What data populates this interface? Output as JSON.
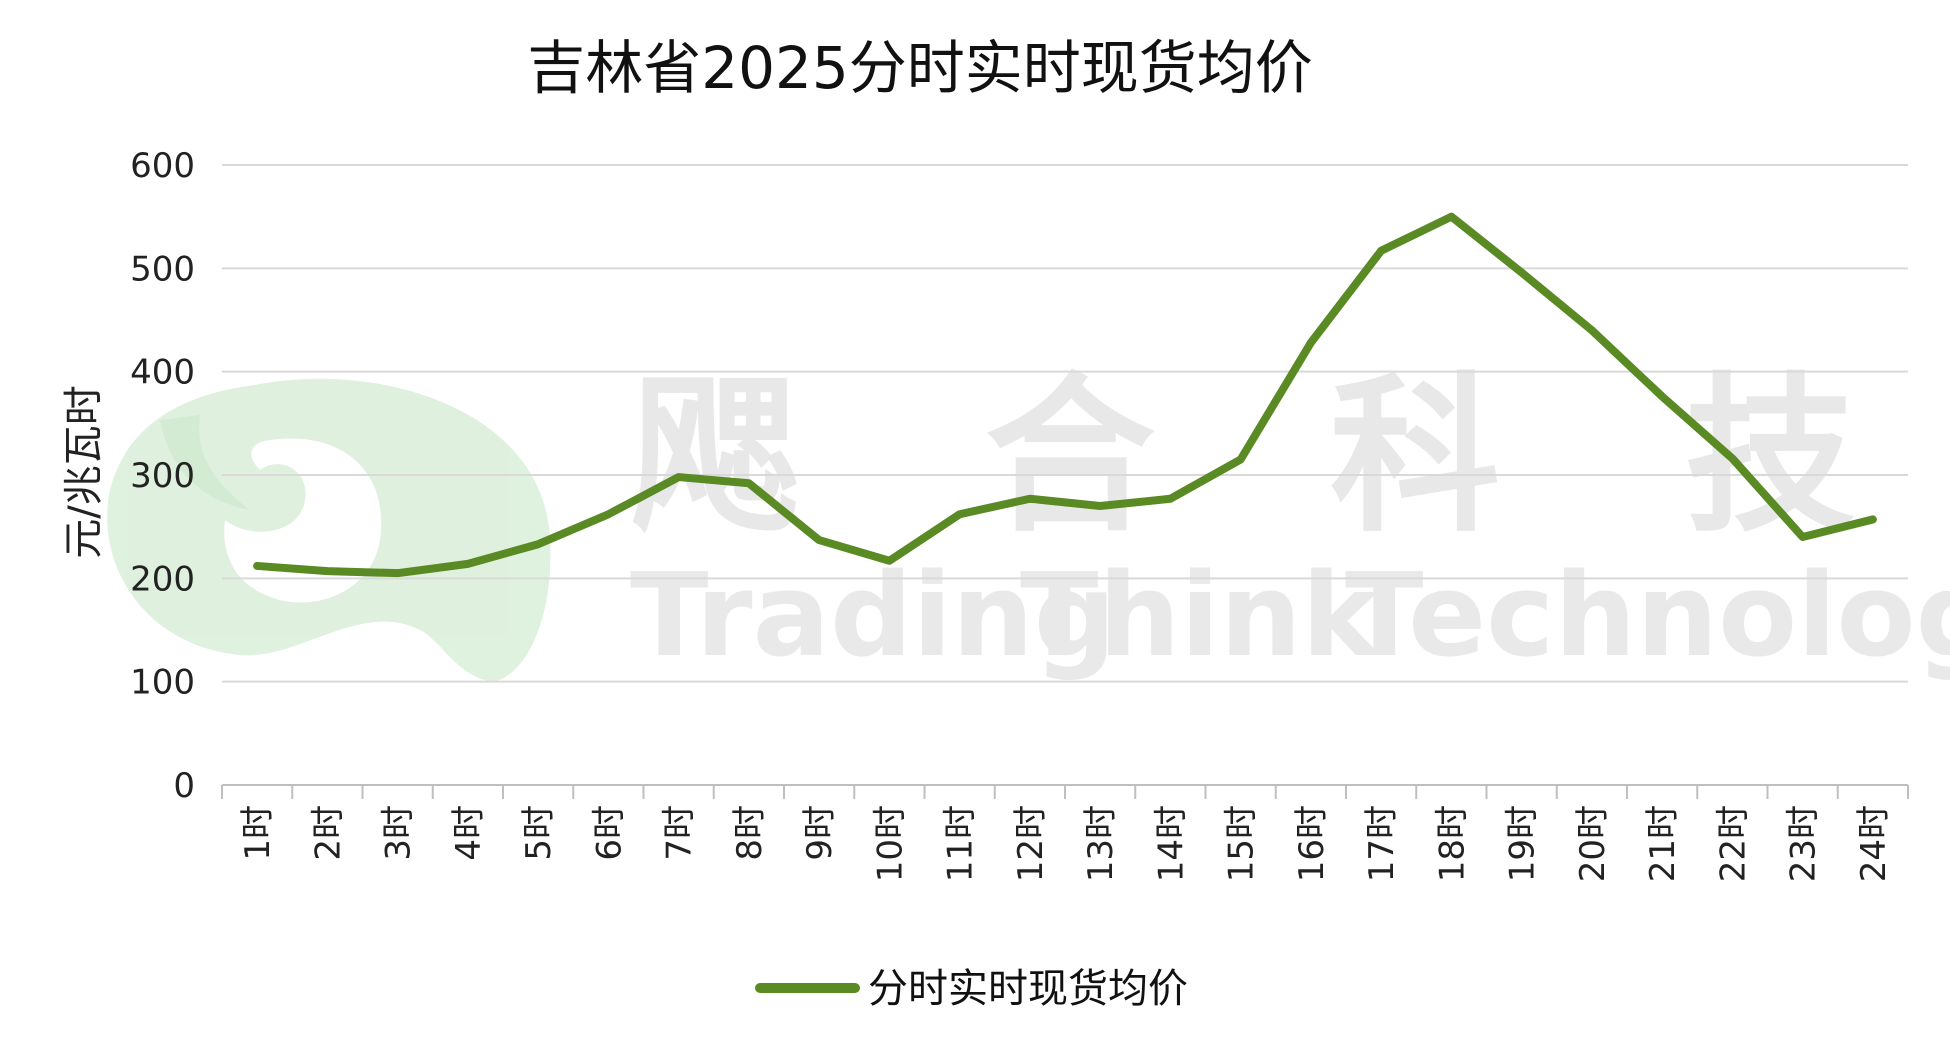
{
  "chart_data": {
    "type": "line",
    "title": "吉林省2025分时实时现货均价",
    "ylabel": "元/兆瓦时",
    "xlabel": "",
    "ylim": [
      0,
      600
    ],
    "yticks": [
      0,
      100,
      200,
      300,
      400,
      500,
      600
    ],
    "grid": true,
    "legend_position": "bottom",
    "categories": [
      "1时",
      "2时",
      "3时",
      "4时",
      "5时",
      "6时",
      "7时",
      "8时",
      "9时",
      "10时",
      "11时",
      "12时",
      "13时",
      "14时",
      "15时",
      "16时",
      "17时",
      "18时",
      "19时",
      "20时",
      "21时",
      "22时",
      "23时",
      "24时"
    ],
    "series": [
      {
        "name": "分时实时现货均价",
        "color": "#5a8a23",
        "values": [
          212,
          207,
          205,
          214,
          233,
          262,
          298,
          292,
          237,
          217,
          262,
          277,
          270,
          277,
          315,
          428,
          517,
          550,
          496,
          440,
          376,
          316,
          240,
          257
        ]
      }
    ]
  },
  "watermark": {
    "chinese": [
      "飔",
      "合",
      "科",
      "技"
    ],
    "english_words": [
      "Trading",
      "Think",
      "Technology"
    ],
    "logo_colors": [
      "#d9efd9",
      "#e6f4e6"
    ]
  }
}
